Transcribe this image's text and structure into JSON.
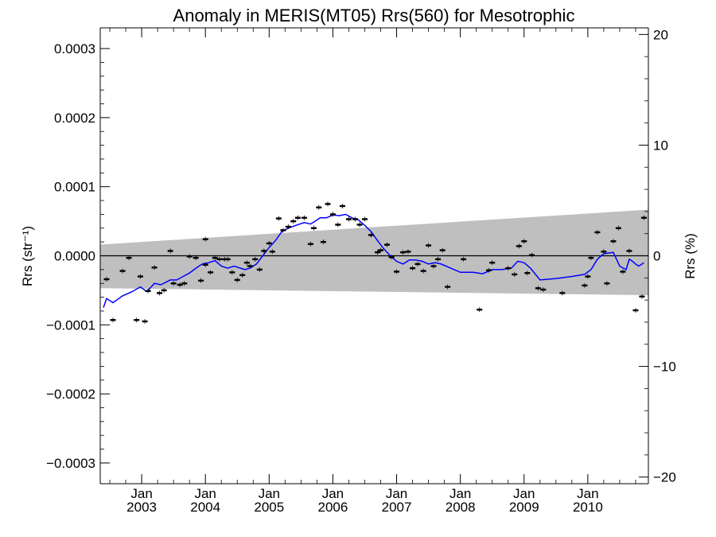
{
  "chart_data": {
    "type": "scatter",
    "title": "Anomaly in MERIS(MT05) Rrs(560) for Mesotrophic",
    "ylabel_left": "Rrs (str⁻¹)",
    "ylabel_right": "Rrs (%)",
    "ylim_left": [
      -0.00033,
      0.00033
    ],
    "ylim_right": [
      -20.6,
      20.6
    ],
    "xlim": [
      "2002-05",
      "2010-12"
    ],
    "left_ticks": [
      "−0.0003",
      "−0.0002",
      "−0.0001",
      "0.0000",
      "0.0001",
      "0.0002",
      "0.0003"
    ],
    "left_tick_values": [
      -0.0003,
      -0.0002,
      -0.0001,
      0,
      0.0001,
      0.0002,
      0.0003
    ],
    "right_ticks": [
      "−20",
      "−10",
      "0",
      "10",
      "20"
    ],
    "right_tick_values": [
      -20,
      -10,
      0,
      10,
      20
    ],
    "x_ticks": [
      {
        "month": "Jan",
        "year": "2003",
        "x": 2003.0
      },
      {
        "month": "Jan",
        "year": "2004",
        "x": 2004.0
      },
      {
        "month": "Jan",
        "year": "2005",
        "x": 2005.0
      },
      {
        "month": "Jan",
        "year": "2006",
        "x": 2006.0
      },
      {
        "month": "Jan",
        "year": "2007",
        "x": 2007.0
      },
      {
        "month": "Jan",
        "year": "2008",
        "x": 2008.0
      },
      {
        "month": "Jan",
        "year": "2009",
        "x": 2009.0
      },
      {
        "month": "Jan",
        "year": "2010",
        "x": 2010.0
      }
    ],
    "band": {
      "color": "#bfbfbf",
      "upper": [
        [
          2002.4,
          1.65e-05
        ],
        [
          2010.9,
          6.65e-05
        ]
      ],
      "lower": [
        [
          2002.4,
          -4.7e-05
        ],
        [
          2010.9,
          -5.7e-05
        ]
      ]
    },
    "anomaly_points": [
      [
        2002.45,
        -3.4e-05
      ],
      [
        2002.55,
        -9.3e-05
      ],
      [
        2002.7,
        -2.2e-05
      ],
      [
        2002.8,
        -3e-06
      ],
      [
        2002.92,
        -9.3e-05
      ],
      [
        2002.98,
        -3e-05
      ],
      [
        2003.05,
        -9.5e-05
      ],
      [
        2003.1,
        -5.1e-05
      ],
      [
        2003.2,
        -1.7e-05
      ],
      [
        2003.28,
        -5.4e-05
      ],
      [
        2003.35,
        -5e-05
      ],
      [
        2003.45,
        7e-06
      ],
      [
        2003.5,
        -4e-05
      ],
      [
        2003.6,
        -4.2e-05
      ],
      [
        2003.67,
        -4e-05
      ],
      [
        2003.75,
        -1e-06
      ],
      [
        2003.85,
        -3e-06
      ],
      [
        2003.93,
        -3.6e-05
      ],
      [
        2004.0,
        -1.3e-05
      ],
      [
        2004.0,
        2.4e-05
      ],
      [
        2004.08,
        -2.4e-05
      ],
      [
        2004.15,
        -3e-06
      ],
      [
        2004.22,
        -5e-06
      ],
      [
        2004.3,
        -5e-06
      ],
      [
        2004.35,
        -5e-06
      ],
      [
        2004.42,
        -2.4e-05
      ],
      [
        2004.5,
        -3.5e-05
      ],
      [
        2004.58,
        -2.8e-05
      ],
      [
        2004.65,
        -1e-05
      ],
      [
        2004.7,
        -1.5e-05
      ],
      [
        2004.78,
        -5e-06
      ],
      [
        2004.85,
        -2e-05
      ],
      [
        2004.92,
        7e-06
      ],
      [
        2005.0,
        1.8e-05
      ],
      [
        2005.05,
        6e-06
      ],
      [
        2005.15,
        5.4e-05
      ],
      [
        2005.22,
        3.7e-05
      ],
      [
        2005.3,
        4.2e-05
      ],
      [
        2005.38,
        5e-05
      ],
      [
        2005.45,
        5.5e-05
      ],
      [
        2005.55,
        5.5e-05
      ],
      [
        2005.65,
        1.7e-05
      ],
      [
        2005.7,
        4e-05
      ],
      [
        2005.78,
        7e-05
      ],
      [
        2005.85,
        2e-05
      ],
      [
        2005.92,
        7.5e-05
      ],
      [
        2006.0,
        6e-05
      ],
      [
        2006.08,
        4.5e-05
      ],
      [
        2006.15,
        7.2e-05
      ],
      [
        2006.25,
        5.3e-05
      ],
      [
        2006.35,
        5.3e-05
      ],
      [
        2006.42,
        4.5e-05
      ],
      [
        2006.5,
        5.3e-05
      ],
      [
        2006.6,
        3e-05
      ],
      [
        2006.7,
        5e-06
      ],
      [
        2006.75,
        8e-06
      ],
      [
        2006.85,
        1.6e-05
      ],
      [
        2006.92,
        -2e-06
      ],
      [
        2007.0,
        -2.3e-05
      ],
      [
        2007.1,
        5e-06
      ],
      [
        2007.18,
        6e-06
      ],
      [
        2007.25,
        -1.8e-05
      ],
      [
        2007.33,
        -1.2e-05
      ],
      [
        2007.42,
        -2.2e-05
      ],
      [
        2007.5,
        1.5e-05
      ],
      [
        2007.58,
        -1.5e-05
      ],
      [
        2007.65,
        -5e-06
      ],
      [
        2007.72,
        8e-06
      ],
      [
        2007.8,
        -4.5e-05
      ],
      [
        2008.05,
        -5e-06
      ],
      [
        2008.3,
        -7.8e-05
      ],
      [
        2008.45,
        -2.1e-05
      ],
      [
        2008.5,
        -1e-05
      ],
      [
        2008.75,
        -1.8e-05
      ],
      [
        2008.85,
        -2.7e-05
      ],
      [
        2008.92,
        1.4e-05
      ],
      [
        2009.0,
        2.1e-05
      ],
      [
        2009.05,
        -2.5e-05
      ],
      [
        2009.12,
        1e-06
      ],
      [
        2009.22,
        -4.7e-05
      ],
      [
        2009.3,
        -4.9e-05
      ],
      [
        2009.6,
        -5.4e-05
      ],
      [
        2009.95,
        -4.3e-05
      ],
      [
        2010.0,
        -3e-05
      ],
      [
        2010.05,
        -3e-06
      ],
      [
        2010.15,
        3.4e-05
      ],
      [
        2010.25,
        6e-06
      ],
      [
        2010.3,
        -4e-05
      ],
      [
        2010.4,
        2.1e-05
      ],
      [
        2010.48,
        4e-05
      ],
      [
        2010.55,
        -2.3e-05
      ],
      [
        2010.65,
        7e-06
      ],
      [
        2010.75,
        -7.9e-05
      ],
      [
        2010.85,
        -5.9e-05
      ],
      [
        2010.88,
        5.5e-05
      ]
    ],
    "smooth_line": {
      "color": "#0000ff",
      "points": [
        [
          2002.4,
          -7.5e-05
        ],
        [
          2002.45,
          -6.2e-05
        ],
        [
          2002.55,
          -6.8e-05
        ],
        [
          2002.7,
          -5.8e-05
        ],
        [
          2002.85,
          -5.2e-05
        ],
        [
          2002.98,
          -4.5e-05
        ],
        [
          2003.08,
          -5.2e-05
        ],
        [
          2003.2,
          -4e-05
        ],
        [
          2003.3,
          -4.2e-05
        ],
        [
          2003.45,
          -3.5e-05
        ],
        [
          2003.55,
          -3.5e-05
        ],
        [
          2003.65,
          -3e-05
        ],
        [
          2003.75,
          -2.5e-05
        ],
        [
          2003.85,
          -1.8e-05
        ],
        [
          2003.95,
          -1.2e-05
        ],
        [
          2004.05,
          -1e-05
        ],
        [
          2004.15,
          -7e-06
        ],
        [
          2004.25,
          -1.5e-05
        ],
        [
          2004.35,
          -1.8e-05
        ],
        [
          2004.45,
          -1.5e-05
        ],
        [
          2004.55,
          -1.8e-05
        ],
        [
          2004.62,
          -2e-05
        ],
        [
          2004.7,
          -1.8e-05
        ],
        [
          2004.8,
          -1.2e-05
        ],
        [
          2004.9,
          0.0
        ],
        [
          2005.0,
          1.2e-05
        ],
        [
          2005.1,
          2.2e-05
        ],
        [
          2005.2,
          3.5e-05
        ],
        [
          2005.3,
          4e-05
        ],
        [
          2005.45,
          4.5e-05
        ],
        [
          2005.55,
          4.8e-05
        ],
        [
          2005.65,
          4.6e-05
        ],
        [
          2005.72,
          5e-05
        ],
        [
          2005.8,
          5.5e-05
        ],
        [
          2005.9,
          5.5e-05
        ],
        [
          2006.0,
          5.9e-05
        ],
        [
          2006.1,
          5.8e-05
        ],
        [
          2006.2,
          6e-05
        ],
        [
          2006.3,
          5.5e-05
        ],
        [
          2006.4,
          5.2e-05
        ],
        [
          2006.5,
          4.4e-05
        ],
        [
          2006.6,
          3.5e-05
        ],
        [
          2006.7,
          2.2e-05
        ],
        [
          2006.8,
          1e-05
        ],
        [
          2006.9,
          0.0
        ],
        [
          2007.0,
          -8e-06
        ],
        [
          2007.1,
          -1.2e-05
        ],
        [
          2007.2,
          -6e-06
        ],
        [
          2007.3,
          -6e-06
        ],
        [
          2007.4,
          -8e-06
        ],
        [
          2007.5,
          -1.2e-05
        ],
        [
          2007.6,
          -1e-05
        ],
        [
          2007.7,
          -1.2e-05
        ],
        [
          2007.85,
          -1.8e-05
        ],
        [
          2008.0,
          -2.4e-05
        ],
        [
          2008.2,
          -2.4e-05
        ],
        [
          2008.35,
          -2.6e-05
        ],
        [
          2008.5,
          -2e-05
        ],
        [
          2008.65,
          -2e-05
        ],
        [
          2008.8,
          -1.8e-05
        ],
        [
          2008.9,
          -8e-06
        ],
        [
          2009.0,
          -1e-05
        ],
        [
          2009.1,
          -1.8e-05
        ],
        [
          2009.25,
          -3.5e-05
        ],
        [
          2009.5,
          -3.3e-05
        ],
        [
          2009.75,
          -3e-05
        ],
        [
          2009.95,
          -2.7e-05
        ],
        [
          2010.05,
          -2e-05
        ],
        [
          2010.15,
          -5e-06
        ],
        [
          2010.25,
          3e-06
        ],
        [
          2010.4,
          5e-06
        ],
        [
          2010.45,
          -5e-06
        ],
        [
          2010.5,
          -1.5e-05
        ],
        [
          2010.6,
          -2e-05
        ],
        [
          2010.65,
          -5e-06
        ],
        [
          2010.7,
          -8e-06
        ],
        [
          2010.75,
          -1.2e-05
        ],
        [
          2010.8,
          -1.5e-05
        ],
        [
          2010.88,
          -1e-05
        ]
      ]
    },
    "zero_line": true,
    "grid": false
  }
}
